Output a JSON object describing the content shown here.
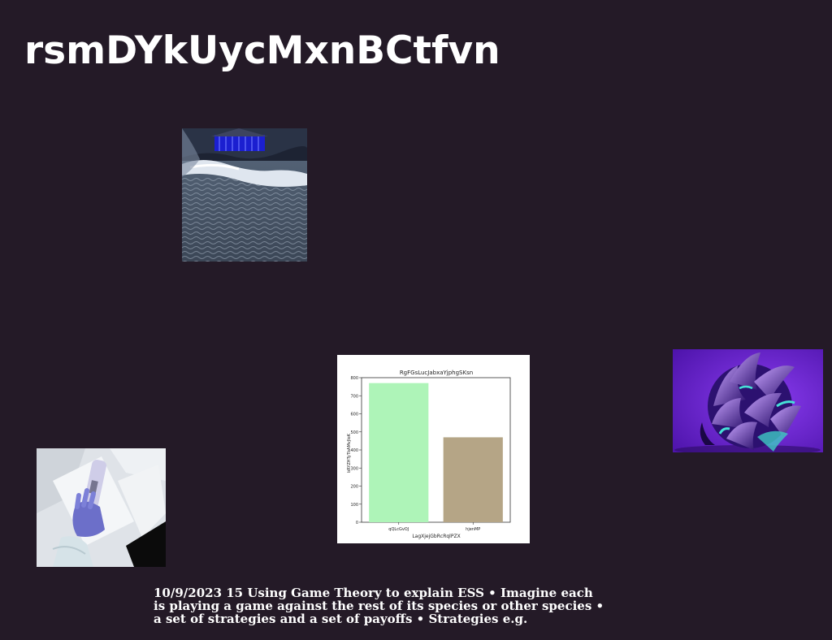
{
  "page": {
    "title": "rsmDYkUycMxnBCtfvn",
    "caption_lines": [
      "10/9/2023 15 Using Game Theory to explain ESS • Imagine each",
      "is playing a game against the rest of its species or other species •",
      "a set of strategies and a set of payoffs • Strategies e.g."
    ]
  },
  "colors": {
    "background": "#241a27",
    "text": "#ffffff"
  },
  "chart_data": {
    "type": "bar",
    "title": "RgFGsLucJabxaYjphgSKsn",
    "xlabel": "LagXjejGbRcRqlPZX",
    "ylabel": "bRYZHTyTbAMvJIoK",
    "categories": [
      "qQLcGvOJ",
      "hjenMP"
    ],
    "values": [
      770,
      470
    ],
    "colors": [
      "#aef4b8",
      "#b5a586"
    ],
    "ylim": [
      0,
      800
    ],
    "yticks": [
      0,
      100,
      200,
      300,
      400,
      500,
      600,
      700,
      800
    ],
    "grid": false
  }
}
